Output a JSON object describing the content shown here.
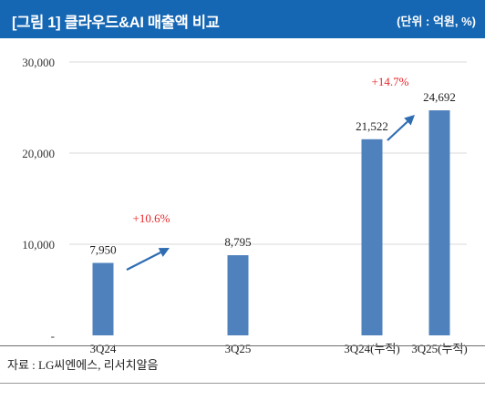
{
  "header": {
    "title": "[그림 1] 클라우드&AI 매출액 비교",
    "unit": "(단위 : 억원, %)"
  },
  "footer": {
    "source": "자료 : LG씨엔에스, 리서치알음"
  },
  "colors": {
    "header_bg": "#1566b3",
    "bar": "#4f81bd",
    "arrow": "#2f6db3",
    "growth_text": "#e8262a",
    "gridline": "#d9d9d9"
  },
  "chart_data": {
    "type": "bar",
    "categories": [
      "3Q24",
      "3Q25",
      "3Q24(누적)",
      "3Q25(누적)"
    ],
    "values": [
      7950,
      8795,
      21522,
      24692
    ],
    "value_labels": [
      "7,950",
      "8,795",
      "21,522",
      "24,692"
    ],
    "y_ticks": [
      {
        "value": 0,
        "label": "-"
      },
      {
        "value": 10000,
        "label": "10,000"
      },
      {
        "value": 20000,
        "label": "20,000"
      },
      {
        "value": 30000,
        "label": "30,000"
      }
    ],
    "ylim": [
      0,
      30000
    ],
    "grid": true,
    "annotations": [
      {
        "text": "+10.6%",
        "from_index": 0,
        "to_index": 1
      },
      {
        "text": "+14.7%",
        "from_index": 2,
        "to_index": 3
      }
    ]
  }
}
